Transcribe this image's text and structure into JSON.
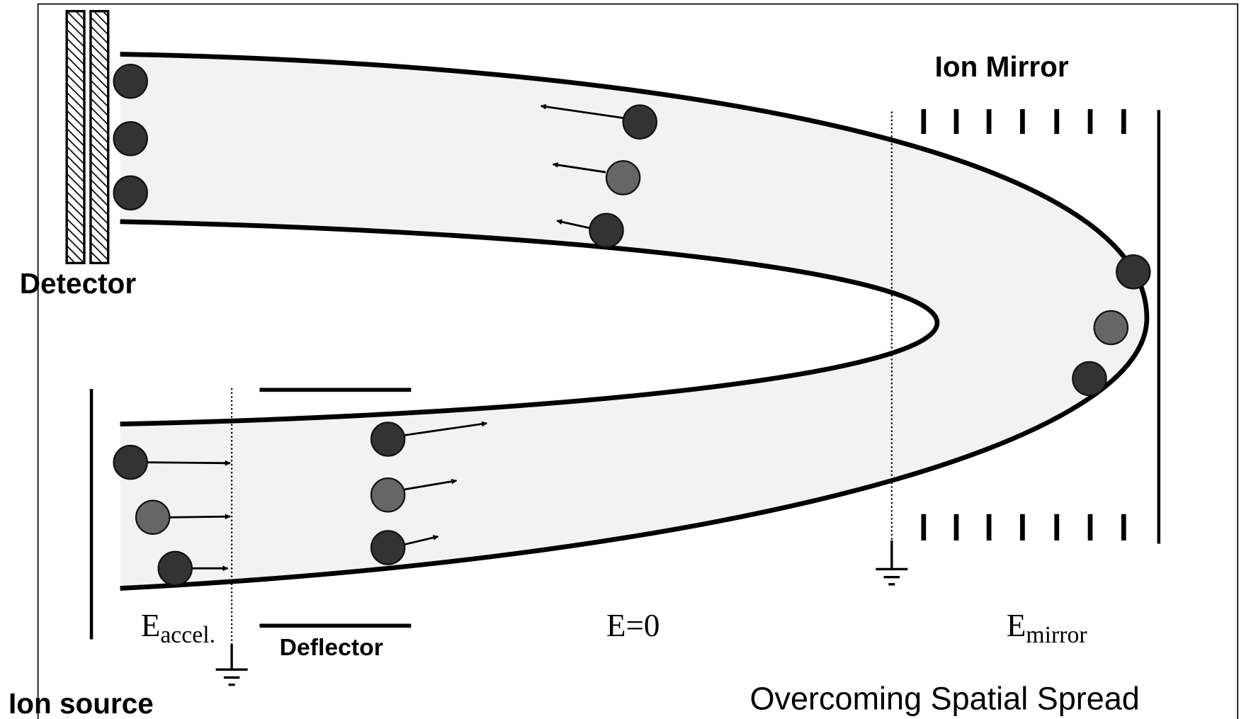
{
  "labels": {
    "ion_mirror": "Ion Mirror",
    "detector": "Detector",
    "ion_source": "Ion source",
    "deflector": "Deflector",
    "e_accel": {
      "main": "E",
      "sub": "accel."
    },
    "e_zero": "E=0",
    "e_mirror": {
      "main": "E",
      "sub": "mirror"
    },
    "caption": "Overcoming Spatial Spread"
  }
}
